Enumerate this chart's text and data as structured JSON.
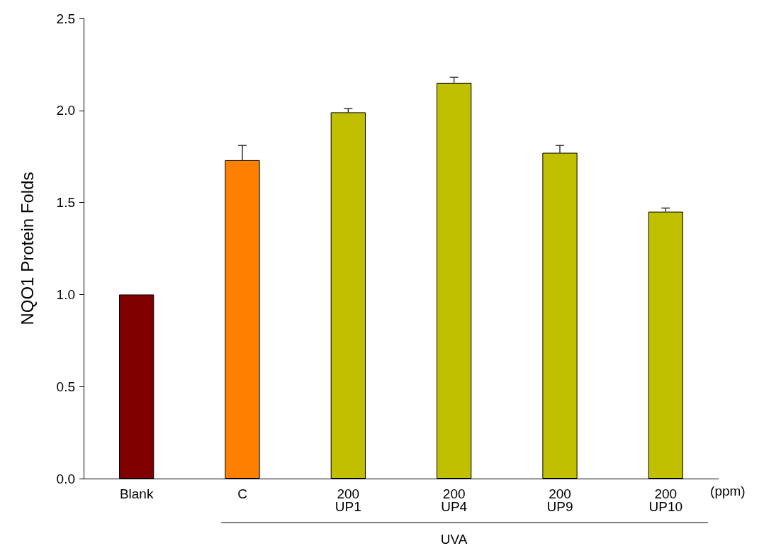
{
  "chart_data": {
    "type": "bar",
    "ylabel": "NQO1 Protein Folds",
    "categories": [
      "Blank",
      "C",
      "200\nUP1",
      "200\nUP4",
      "200\nUP9",
      "200\nUP10"
    ],
    "values": [
      1.0,
      1.73,
      1.99,
      2.15,
      1.77,
      1.45
    ],
    "colors": [
      "#800000",
      "#ff8000",
      "#c0c000",
      "#c0c000",
      "#c0c000",
      "#c0c000"
    ],
    "errors": [
      null,
      [
        1.73,
        1.81
      ],
      [
        1.99,
        2.01
      ],
      [
        2.15,
        2.18
      ],
      [
        1.77,
        1.81
      ],
      [
        1.45,
        1.47
      ]
    ],
    "ylim": [
      0,
      2.5
    ],
    "yticks": [
      {
        "value": 0,
        "label": "0.0"
      },
      {
        "value": 0.5,
        "label": "0.5"
      },
      {
        "value": 1,
        "label": "1.0"
      },
      {
        "value": 1.5,
        "label": "1.5"
      },
      {
        "value": 2,
        "label": "2.0"
      },
      {
        "value": 2.5,
        "label": "2.5"
      }
    ],
    "grid": false,
    "annotations": [
      "(ppm)",
      "UVA"
    ]
  }
}
